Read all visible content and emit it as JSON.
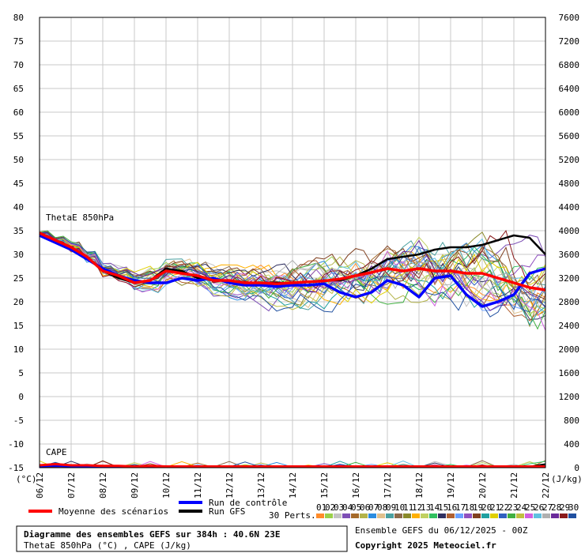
{
  "chart_data": {
    "type": "line",
    "left_axis": {
      "ticks": [
        80,
        75,
        70,
        65,
        60,
        55,
        50,
        45,
        40,
        35,
        30,
        25,
        20,
        15,
        10,
        5,
        0,
        -5,
        -10,
        -15
      ],
      "ylim": [
        -15,
        80
      ],
      "unit_label": "(°C)"
    },
    "right_axis": {
      "ticks": [
        7600,
        7200,
        6800,
        6400,
        6000,
        5600,
        5200,
        4800,
        4400,
        4000,
        3600,
        3200,
        2800,
        2400,
        2000,
        1600,
        1200,
        800,
        400,
        0
      ],
      "ylim": [
        0,
        7600
      ],
      "unit_label": "(J/kg)"
    },
    "x_ticks": [
      "06/12",
      "07/12",
      "08/12",
      "09/12",
      "10/12",
      "11/12",
      "12/12",
      "13/12",
      "14/12",
      "15/12",
      "16/12",
      "17/12",
      "18/12",
      "19/12",
      "20/12",
      "21/12",
      "22/12"
    ],
    "annotations": {
      "thetae": "ThetaE 850hPa",
      "cape": "CAPE"
    },
    "legend": {
      "mean": "Moyenne des scénarios",
      "control": "Run de contrôle",
      "gfs": "Run GFS",
      "perts": "30 Perts."
    },
    "pert_labels": [
      "01",
      "02",
      "03",
      "04",
      "05",
      "06",
      "07",
      "08",
      "09",
      "10",
      "11",
      "12",
      "13",
      "14",
      "15",
      "16",
      "17",
      "18",
      "19",
      "20",
      "21",
      "22",
      "23",
      "24",
      "25",
      "26",
      "27",
      "28",
      "29",
      "30"
    ],
    "pert_colors": [
      "#ff8c2a",
      "#9ad04a",
      "#c3c3c3",
      "#7d4fb5",
      "#a56a2a",
      "#b3b34a",
      "#2a8ce0",
      "#e0c08c",
      "#4aa0a0",
      "#8c6a4a",
      "#8a8a2a",
      "#ffb000",
      "#c0d060",
      "#30c060",
      "#303060",
      "#b06030",
      "#6aa0ff",
      "#9050c0",
      "#804020",
      "#20a0a0",
      "#e0d000",
      "#3060c0",
      "#40b040",
      "#c0c040",
      "#d060e0",
      "#60c0e0",
      "#b0b0b0",
      "#6a2a9a",
      "#8a1a1a",
      "#2050a0"
    ],
    "colors": {
      "mean": "#ff0000",
      "control": "#0000ff",
      "gfs": "#000000"
    },
    "series": [
      {
        "name": "Moyenne des scénarios",
        "role": "mean",
        "x": [
          0,
          0.5,
          1,
          1.5,
          2,
          2.5,
          3,
          3.5,
          4,
          4.5,
          5,
          5.5,
          6,
          6.5,
          7,
          7.5,
          8,
          8.5,
          9,
          9.5,
          10,
          10.5,
          11,
          11.5,
          12,
          12.5,
          13,
          13.5,
          14,
          14.5,
          15,
          15.5,
          16
        ],
        "theta": [
          34.5,
          33,
          31.5,
          29.5,
          26.5,
          25.5,
          24,
          24.5,
          26.5,
          26,
          25.5,
          24.5,
          24.5,
          24,
          24,
          23.8,
          24,
          24.2,
          24.4,
          24.8,
          25.5,
          26.2,
          27,
          26.5,
          27,
          26.5,
          26.5,
          26,
          26,
          25,
          24,
          23,
          22.5
        ],
        "cape": [
          40,
          60,
          40,
          40,
          30,
          30,
          20,
          30,
          20,
          20,
          20,
          20,
          20,
          20,
          20,
          20,
          20,
          20,
          20,
          20,
          20,
          20,
          20,
          20,
          20,
          20,
          20,
          20,
          20,
          20,
          20,
          20,
          20
        ]
      },
      {
        "name": "Run de contrôle",
        "role": "control",
        "x": [
          0,
          0.5,
          1,
          1.5,
          2,
          2.5,
          3,
          3.5,
          4,
          4.5,
          5,
          5.5,
          6,
          6.5,
          7,
          7.5,
          8,
          8.5,
          9,
          9.5,
          10,
          10.5,
          11,
          11.5,
          12,
          12.5,
          13,
          13.5,
          14,
          14.5,
          15,
          15.5,
          16
        ],
        "theta": [
          34,
          32.5,
          31,
          29,
          27,
          25.5,
          24.5,
          24,
          24,
          25,
          24.5,
          25,
          24,
          23.5,
          23.5,
          23.2,
          23.5,
          23.5,
          23.8,
          22,
          21,
          22,
          24.5,
          23.5,
          21,
          25,
          25.5,
          21.5,
          19,
          20,
          21.5,
          26,
          27
        ],
        "cape": [
          20,
          30,
          20,
          20,
          20,
          20,
          20,
          20,
          20,
          20,
          20,
          20,
          20,
          20,
          20,
          20,
          20,
          20,
          20,
          20,
          20,
          20,
          20,
          20,
          20,
          20,
          20,
          20,
          20,
          20,
          20,
          20,
          20
        ]
      },
      {
        "name": "Run GFS",
        "role": "gfs",
        "x": [
          0,
          0.5,
          1,
          1.5,
          2,
          2.5,
          3,
          3.5,
          4,
          4.5,
          5,
          5.5,
          6,
          6.5,
          7,
          7.5,
          8,
          8.5,
          9,
          9.5,
          10,
          10.5,
          11,
          11.5,
          12,
          12.5,
          13,
          13.5,
          14,
          14.5,
          15,
          15.5,
          16
        ],
        "theta": [
          34,
          32.5,
          31,
          29.5,
          26.5,
          25,
          24,
          24.5,
          27,
          26.5,
          25,
          24.5,
          24.5,
          23.5,
          24,
          24,
          24,
          24.2,
          24.5,
          24.5,
          25.5,
          27,
          29,
          29.5,
          30,
          31,
          31.5,
          31.5,
          32,
          33,
          34,
          33.5,
          30
        ],
        "cape": [
          20,
          30,
          20,
          20,
          20,
          20,
          20,
          20,
          20,
          20,
          20,
          20,
          20,
          20,
          20,
          20,
          20,
          20,
          20,
          20,
          20,
          20,
          20,
          20,
          20,
          20,
          20,
          20,
          20,
          20,
          20,
          20,
          60
        ]
      }
    ]
  },
  "footer": {
    "title_line1": "Diagramme des ensembles GEFS sur 384h : 40.6N 23E",
    "title_line2": "ThetaE 850hPa (°C) , CAPE (J/kg)",
    "run_info": "Ensemble GEFS du 06/12/2025 - 00Z",
    "copyright": "Copyright 2025 Meteociel.fr"
  }
}
